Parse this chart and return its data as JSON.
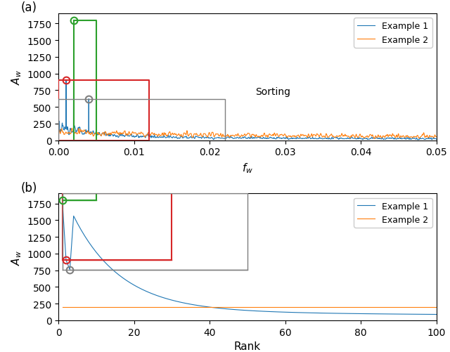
{
  "fig_width": 6.4,
  "fig_height": 5.02,
  "dpi": 100,
  "title_a": "(a)",
  "title_b": "(b)",
  "xlabel_a": "$f_w$",
  "xlabel_b": "Rank",
  "ylabel": "$A_w$",
  "legend_labels": [
    "Example 1",
    "Example 2"
  ],
  "line_colors": [
    "#1f77b4",
    "#ff7f0e"
  ],
  "green_color": "#2ca02c",
  "orange_rect_color": "#d62728",
  "gray_color": "#7f7f7f",
  "annotation_text": "Sorting",
  "n_freq": 2000,
  "fw_max": 0.05,
  "n_rank": 100,
  "ylim_a": [
    0,
    1900
  ],
  "ylim_b": [
    0,
    1900
  ],
  "xlim_a": [
    0.0,
    0.05
  ],
  "xlim_b": [
    0,
    100
  ],
  "yticks": [
    0,
    250,
    500,
    750,
    1000,
    1250,
    1500,
    1750
  ]
}
